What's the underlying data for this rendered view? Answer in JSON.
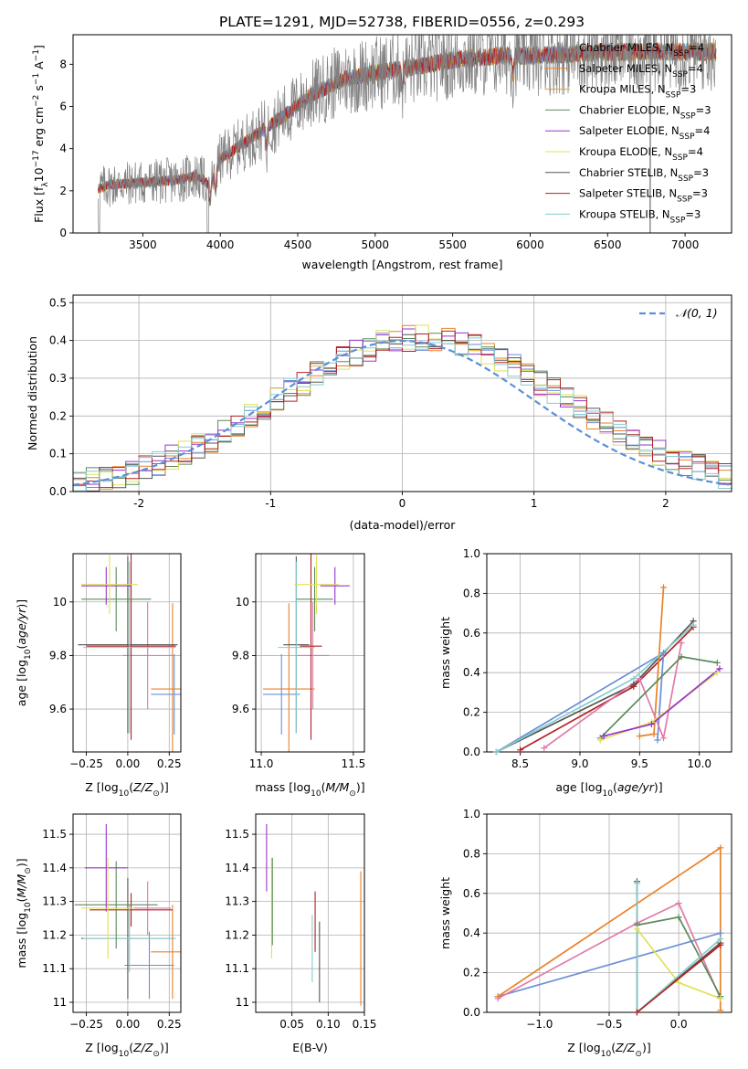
{
  "figure_title": "PLATE=1291, MJD=52738, FIBERID=0556, z=0.293",
  "colors": {
    "chabrier_miles": "#6a8fd8",
    "salpeter_miles": "#e8822a",
    "kroupa_miles": "#e6a329",
    "chabrier_elodie": "#5b8a5b",
    "salpeter_elodie": "#9933cc",
    "kroupa_elodie": "#e0e05a",
    "chabrier_stelib": "#555555",
    "salpeter_stelib": "#b22222",
    "kroupa_stelib": "#88cccc",
    "data": "#808080",
    "pink": "#e07aa8",
    "gaussian": "#5b8fd9"
  },
  "chart_data": [
    {
      "type": "line",
      "xlabel": "wavelength [Angstrom, rest frame]",
      "ylabel": "Flux [f_λ10^-17 erg cm^-2 s^-1 A^-1]",
      "xlim": [
        3050,
        7300
      ],
      "ylim": [
        0,
        9.4
      ],
      "xticks": [
        3500,
        4000,
        4500,
        5000,
        5500,
        6000,
        6500,
        7000
      ],
      "yticks": [
        0,
        2,
        4,
        6,
        8
      ],
      "grid": false,
      "legend_position": "upper-right",
      "legend": [
        {
          "label": "Chabrier MILES, N",
          "sub": "SSP",
          "tail": "=4",
          "color": "#6a8fd8"
        },
        {
          "label": "Salpeter MILES, N",
          "sub": "SSP",
          "tail": "=4",
          "color": "#e8822a"
        },
        {
          "label": "Kroupa MILES, N",
          "sub": "SSP",
          "tail": "=3",
          "color": "#e6a329"
        },
        {
          "label": "Chabrier ELODIE, N",
          "sub": "SSP",
          "tail": "=3",
          "color": "#5b8a5b"
        },
        {
          "label": "Salpeter ELODIE, N",
          "sub": "SSP",
          "tail": "=4",
          "color": "#9933cc"
        },
        {
          "label": "Kroupa ELODIE, N",
          "sub": "SSP",
          "tail": "=4",
          "color": "#e0e05a"
        },
        {
          "label": "Chabrier STELIB, N",
          "sub": "SSP",
          "tail": "=3",
          "color": "#555555"
        },
        {
          "label": "Salpeter STELIB, N",
          "sub": "SSP",
          "tail": "=3",
          "color": "#b22222"
        },
        {
          "label": "Kroupa STELIB, N",
          "sub": "SSP",
          "tail": "=3",
          "color": "#88cccc"
        }
      ],
      "continuum": {
        "x": [
          3210,
          3300,
          3500,
          3700,
          3850,
          3930,
          4000,
          4200,
          4400,
          4600,
          4800,
          5000,
          5200,
          5500,
          5800,
          6000,
          6300,
          6600,
          7000,
          7200
        ],
        "y": [
          2.1,
          2.3,
          2.4,
          2.5,
          2.7,
          2.3,
          3.5,
          4.5,
          5.5,
          6.6,
          7.3,
          7.6,
          7.8,
          8.2,
          8.4,
          8.4,
          8.5,
          8.6,
          8.6,
          8.6
        ]
      }
    },
    {
      "type": "histogram",
      "xlabel": "(data-model)/error",
      "ylabel": "Normed distribution",
      "xlim": [
        -2.5,
        2.5
      ],
      "ylim": [
        0,
        0.52
      ],
      "xticks": [
        -2,
        -1,
        0,
        1,
        2
      ],
      "yticks": [
        0.0,
        0.1,
        0.2,
        0.3,
        0.4,
        0.5
      ],
      "grid": true,
      "legend_position": "upper-right",
      "gaussian_label": "𝒩(0, 1)",
      "bin_width": 0.1
    },
    {
      "type": "errorbar",
      "xlabel": "Z [log10(Z/Z⊙)]",
      "ylabel": "age  [log10(age/yr)]",
      "xlim": [
        -0.33,
        0.32
      ],
      "ylim": [
        9.44,
        10.18
      ],
      "xticks": [
        -0.25,
        0.0,
        0.25
      ],
      "xtick_labels": [
        "−0.25",
        "0.00",
        "0.25"
      ],
      "yticks": [
        9.6,
        9.8,
        10.0
      ],
      "grid": true,
      "points": [
        {
          "x": 0.28,
          "y": 9.655,
          "xerr": 0.14,
          "yerr": 0.15,
          "color": "#6a8fd8"
        },
        {
          "x": 0.27,
          "y": 9.675,
          "xerr": 0.13,
          "yerr": 0.32,
          "color": "#e8822a"
        },
        {
          "x": 0.12,
          "y": 9.8,
          "xerr": 0.15,
          "yerr": 0.2,
          "color": "#e07aa8"
        },
        {
          "x": 0.02,
          "y": 9.835,
          "xerr": 0.27,
          "yerr": 0.35,
          "color": "#b22222"
        },
        {
          "x": 0.0,
          "y": 9.84,
          "xerr": 0.3,
          "yerr": 0.33,
          "color": "#555555"
        },
        {
          "x": 0.01,
          "y": 9.83,
          "xerr": 0.28,
          "yerr": 0.32,
          "color": "#88cccc"
        },
        {
          "x": -0.07,
          "y": 10.01,
          "xerr": 0.21,
          "yerr": 0.12,
          "color": "#5b8a5b"
        },
        {
          "x": -0.13,
          "y": 10.06,
          "xerr": 0.15,
          "yerr": 0.07,
          "color": "#9933cc"
        },
        {
          "x": -0.11,
          "y": 10.065,
          "xerr": 0.17,
          "yerr": 0.11,
          "color": "#e0e05a"
        }
      ]
    },
    {
      "type": "errorbar",
      "xlabel": "mass [log10(M/M⊙)]",
      "ylabel": "",
      "xlim": [
        10.97,
        11.56
      ],
      "ylim": [
        9.44,
        10.18
      ],
      "xticks": [
        11.0,
        11.5
      ],
      "xtick_labels": [
        "11.0",
        "11.5"
      ],
      "yticks": [
        9.6,
        9.8,
        10.0
      ],
      "grid": true,
      "points": [
        {
          "x": 11.11,
          "y": 9.655,
          "xerr": 0.1,
          "yerr": 0.15,
          "color": "#6a8fd8"
        },
        {
          "x": 11.15,
          "y": 9.675,
          "xerr": 0.14,
          "yerr": 0.32,
          "color": "#e8822a"
        },
        {
          "x": 11.28,
          "y": 9.8,
          "xerr": 0.09,
          "yerr": 0.2,
          "color": "#e07aa8"
        },
        {
          "x": 11.27,
          "y": 9.835,
          "xerr": 0.06,
          "yerr": 0.35,
          "color": "#b22222"
        },
        {
          "x": 11.19,
          "y": 9.84,
          "xerr": 0.07,
          "yerr": 0.33,
          "color": "#555555"
        },
        {
          "x": 11.19,
          "y": 9.83,
          "xerr": 0.1,
          "yerr": 0.32,
          "color": "#88cccc"
        },
        {
          "x": 11.29,
          "y": 10.01,
          "xerr": 0.1,
          "yerr": 0.12,
          "color": "#5b8a5b"
        },
        {
          "x": 11.4,
          "y": 10.06,
          "xerr": 0.08,
          "yerr": 0.07,
          "color": "#9933cc"
        },
        {
          "x": 11.3,
          "y": 10.065,
          "xerr": 0.12,
          "yerr": 0.11,
          "color": "#e0e05a"
        }
      ]
    },
    {
      "type": "line",
      "xlabel": "age  [log10(age/yr)]",
      "ylabel": "mass weight",
      "xlim": [
        8.22,
        10.27
      ],
      "ylim": [
        0,
        1.0
      ],
      "xticks": [
        8.5,
        9.0,
        9.5,
        10.0
      ],
      "xtick_labels": [
        "8.5",
        "9.0",
        "9.5",
        "10.0"
      ],
      "yticks": [
        0.0,
        0.2,
        0.4,
        0.6,
        0.8,
        1.0
      ],
      "grid": true,
      "series": [
        {
          "color": "#b22222",
          "points": [
            [
              8.5,
              0.01
            ],
            [
              9.45,
              0.33
            ],
            [
              9.95,
              0.63
            ]
          ]
        },
        {
          "color": "#555555",
          "points": [
            [
              8.3,
              0.0
            ],
            [
              9.45,
              0.34
            ],
            [
              9.95,
              0.66
            ]
          ]
        },
        {
          "color": "#6a8fd8",
          "points": [
            [
              8.3,
              0.0
            ],
            [
              9.7,
              0.5
            ],
            [
              9.65,
              0.06
            ]
          ]
        },
        {
          "color": "#e8822a",
          "points": [
            [
              9.5,
              0.08
            ],
            [
              9.62,
              0.09
            ],
            [
              9.7,
              0.83
            ]
          ]
        },
        {
          "color": "#e07aa8",
          "points": [
            [
              8.7,
              0.02
            ],
            [
              9.5,
              0.37
            ],
            [
              9.7,
              0.07
            ],
            [
              9.85,
              0.55
            ]
          ]
        },
        {
          "color": "#5b8a5b",
          "points": [
            [
              9.17,
              0.07
            ],
            [
              9.85,
              0.48
            ],
            [
              10.15,
              0.45
            ]
          ]
        },
        {
          "color": "#e0e05a",
          "points": [
            [
              9.17,
              0.06
            ],
            [
              9.6,
              0.15
            ],
            [
              10.15,
              0.4
            ]
          ]
        },
        {
          "color": "#9933cc",
          "points": [
            [
              9.2,
              0.08
            ],
            [
              9.6,
              0.14
            ],
            [
              10.17,
              0.42
            ]
          ]
        },
        {
          "color": "#88cccc",
          "points": [
            [
              8.3,
              0.0
            ],
            [
              9.45,
              0.37
            ],
            [
              9.95,
              0.64
            ]
          ]
        }
      ]
    },
    {
      "type": "errorbar",
      "xlabel": "Z [log10(Z/Z⊙)]",
      "ylabel": "mass [log10(M/M⊙)]",
      "xlim": [
        -0.33,
        0.32
      ],
      "ylim": [
        10.97,
        11.56
      ],
      "xticks": [
        -0.25,
        0.0,
        0.25
      ],
      "xtick_labels": [
        "−0.25",
        "0.00",
        "0.25"
      ],
      "yticks": [
        11.0,
        11.1,
        11.2,
        11.3,
        11.4,
        11.5
      ],
      "grid": true,
      "points": [
        {
          "x": 0.13,
          "y": 11.11,
          "xerr": 0.15,
          "yerr": 0.1,
          "color": "#6a8fd8"
        },
        {
          "x": 0.27,
          "y": 11.15,
          "xerr": 0.13,
          "yerr": 0.14,
          "color": "#e8822a"
        },
        {
          "x": 0.12,
          "y": 11.28,
          "xerr": 0.14,
          "yerr": 0.08,
          "color": "#e07aa8"
        },
        {
          "x": 0.02,
          "y": 11.275,
          "xerr": 0.25,
          "yerr": 0.05,
          "color": "#b22222"
        },
        {
          "x": 0.0,
          "y": 11.19,
          "xerr": 0.28,
          "yerr": 0.18,
          "color": "#555555"
        },
        {
          "x": 0.01,
          "y": 11.19,
          "xerr": 0.28,
          "yerr": 0.1,
          "color": "#88cccc"
        },
        {
          "x": -0.07,
          "y": 11.29,
          "xerr": 0.25,
          "yerr": 0.13,
          "color": "#5b8a5b"
        },
        {
          "x": -0.13,
          "y": 11.4,
          "xerr": 0.13,
          "yerr": 0.13,
          "color": "#9933cc"
        },
        {
          "x": -0.12,
          "y": 11.28,
          "xerr": 0.16,
          "yerr": 0.15,
          "color": "#e0e05a"
        }
      ]
    },
    {
      "type": "errorbar",
      "xlabel": "E(B-V)",
      "ylabel": "",
      "xlim": [
        0.0,
        0.15
      ],
      "ylim": [
        10.97,
        11.56
      ],
      "xticks": [
        0.05,
        0.1,
        0.15
      ],
      "xtick_labels": [
        "0.05",
        "0.10",
        "0.15"
      ],
      "yticks": [
        11.0,
        11.1,
        11.2,
        11.3,
        11.4,
        11.5
      ],
      "grid": true,
      "points": [
        {
          "x": 0.015,
          "y": 11.43,
          "xerr": 0,
          "yerr": 0.1,
          "color": "#9933cc"
        },
        {
          "x": 0.022,
          "y": 11.28,
          "xerr": 0,
          "yerr": 0.15,
          "color": "#e0e05a"
        },
        {
          "x": 0.023,
          "y": 11.3,
          "xerr": 0,
          "yerr": 0.13,
          "color": "#5b8a5b"
        },
        {
          "x": 0.078,
          "y": 11.16,
          "xerr": 0,
          "yerr": 0.1,
          "color": "#88cccc"
        },
        {
          "x": 0.082,
          "y": 11.24,
          "xerr": 0,
          "yerr": 0.09,
          "color": "#b22222"
        },
        {
          "x": 0.088,
          "y": 11.12,
          "xerr": 0,
          "yerr": 0.12,
          "color": "#555555"
        },
        {
          "x": 0.145,
          "y": 11.19,
          "xerr": 0,
          "yerr": 0.2,
          "color": "#e8822a"
        }
      ]
    },
    {
      "type": "line",
      "xlabel": "Z [log10(Z/Z⊙)]",
      "ylabel": "mass weight",
      "xlim": [
        -1.38,
        0.38
      ],
      "ylim": [
        0,
        1.0
      ],
      "xticks": [
        -1.0,
        -0.5,
        0.0
      ],
      "xtick_labels": [
        "−1.0",
        "−0.5",
        "0.0"
      ],
      "yticks": [
        0.0,
        0.2,
        0.4,
        0.6,
        0.8,
        1.0
      ],
      "grid": true,
      "series": [
        {
          "color": "#6a8fd8",
          "points": [
            [
              -1.3,
              0.08
            ],
            [
              0.3,
              0.4
            ],
            [
              0.3,
              0.35
            ]
          ]
        },
        {
          "color": "#e8822a",
          "points": [
            [
              -1.3,
              0.08
            ],
            [
              0.3,
              0.83
            ],
            [
              0.3,
              0.01
            ]
          ]
        },
        {
          "color": "#e07aa8",
          "points": [
            [
              -1.3,
              0.07
            ],
            [
              -0.3,
              0.45
            ],
            [
              0.0,
              0.55
            ],
            [
              0.3,
              0.07
            ]
          ]
        },
        {
          "color": "#5b8a5b",
          "points": [
            [
              -0.3,
              0.44
            ],
            [
              0.0,
              0.48
            ],
            [
              0.3,
              0.08
            ]
          ]
        },
        {
          "color": "#e0e05a",
          "points": [
            [
              -0.3,
              0.42
            ],
            [
              0.0,
              0.15
            ],
            [
              0.3,
              0.07
            ]
          ]
        },
        {
          "color": "#555555",
          "points": [
            [
              -0.3,
              0.66
            ],
            [
              -0.3,
              0.0
            ],
            [
              0.3,
              0.35
            ]
          ]
        },
        {
          "color": "#88cccc",
          "points": [
            [
              -0.3,
              0.65
            ],
            [
              -0.3,
              0.0
            ],
            [
              0.3,
              0.37
            ]
          ]
        },
        {
          "color": "#b22222",
          "points": [
            [
              -0.3,
              0.0
            ],
            [
              0.3,
              0.34
            ]
          ]
        }
      ]
    }
  ]
}
